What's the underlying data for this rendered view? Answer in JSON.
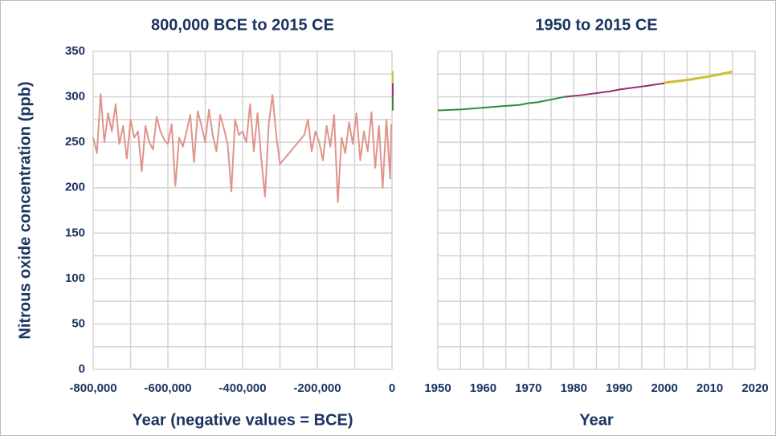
{
  "chart_data": [
    {
      "type": "line",
      "title": "800,000 BCE to 2015 CE",
      "xlabel": "Year (negative values = BCE)",
      "ylabel": "Nitrous oxide concentration (ppb)",
      "xlim": [
        -800000,
        0
      ],
      "xticks": [
        {
          "value": -800000,
          "label": "-800,000"
        },
        {
          "value": -600000,
          "label": "-600,000"
        },
        {
          "value": -400000,
          "label": "-400,000"
        },
        {
          "value": -200000,
          "label": "-200,000"
        },
        0
      ],
      "xminorticks": [
        -700000,
        -500000,
        -300000,
        -100000
      ],
      "ylim": [
        0,
        350
      ],
      "yticks": [
        0,
        50,
        100,
        150,
        200,
        250,
        300,
        350
      ],
      "yminorticks": [
        25,
        75,
        125,
        175,
        225,
        275,
        325
      ],
      "show_ytick_labels": true,
      "grid": true,
      "series": [
        {
          "color": "#e0948c",
          "x": [
            -800000,
            -790000,
            -780000,
            -770000,
            -760000,
            -750000,
            -740000,
            -730000,
            -720000,
            -710000,
            -700000,
            -690000,
            -680000,
            -670000,
            -660000,
            -650000,
            -640000,
            -630000,
            -620000,
            -610000,
            -600000,
            -590000,
            -580000,
            -570000,
            -560000,
            -550000,
            -540000,
            -530000,
            -520000,
            -510000,
            -500000,
            -490000,
            -480000,
            -470000,
            -460000,
            -450000,
            -440000,
            -430000,
            -420000,
            -410000,
            -400000,
            -390000,
            -380000,
            -370000,
            -360000,
            -350000,
            -340000,
            -330000,
            -320000,
            -310000,
            -300000,
            -235000,
            -225000,
            -215000,
            -205000,
            -195000,
            -185000,
            -175000,
            -165000,
            -155000,
            -145000,
            -135000,
            -125000,
            -115000,
            -105000,
            -95000,
            -85000,
            -75000,
            -65000,
            -55000,
            -45000,
            -35000,
            -25000,
            -15000,
            -5000,
            -2000
          ],
          "values": [
            255,
            238,
            303,
            250,
            282,
            262,
            292,
            248,
            268,
            232,
            275,
            255,
            262,
            218,
            268,
            250,
            242,
            278,
            262,
            253,
            248,
            270,
            202,
            255,
            245,
            262,
            280,
            228,
            284,
            268,
            250,
            286,
            258,
            240,
            280,
            265,
            248,
            196,
            275,
            258,
            262,
            250,
            292,
            240,
            282,
            232,
            190,
            270,
            302,
            258,
            226,
            258,
            275,
            240,
            262,
            250,
            230,
            268,
            245,
            280,
            184,
            255,
            238,
            272,
            248,
            282,
            230,
            262,
            240,
            283,
            222,
            268,
            200,
            275,
            210,
            270
          ]
        },
        {
          "color": "#2e8b3a",
          "x": [
            1950,
            1955,
            1960,
            1965,
            1968,
            1970,
            1972,
            1974,
            1976,
            1978,
            1980
          ],
          "values": [
            285,
            286,
            288,
            290,
            291,
            293,
            294,
            296,
            298,
            300,
            301
          ]
        },
        {
          "color": "#9b2f6e",
          "x": [
            1978,
            1980,
            1982,
            1985,
            1988,
            1990,
            1993,
            1996,
            2000
          ],
          "values": [
            300,
            301,
            302,
            304,
            306,
            308,
            310,
            312,
            315
          ]
        },
        {
          "color": "#f0a030",
          "x": [
            2000,
            2005,
            2010,
            2015
          ],
          "values": [
            316,
            319,
            323,
            328
          ]
        },
        {
          "color": "#b8d432",
          "x": [
            2000,
            2005,
            2010,
            2015
          ],
          "values": [
            315,
            318,
            322,
            327
          ]
        }
      ]
    },
    {
      "type": "line",
      "title": "1950 to 2015 CE",
      "xlabel": "Year",
      "xlim": [
        1950,
        2020
      ],
      "xticks": [
        1950,
        1960,
        1970,
        1980,
        1990,
        2000,
        2010,
        2020
      ],
      "xminorticks": [
        1955,
        1965,
        1975,
        1985,
        1995,
        2005,
        2015
      ],
      "ylim": [
        0,
        350
      ],
      "yticks": [
        0,
        50,
        100,
        150,
        200,
        250,
        300,
        350
      ],
      "yminorticks": [
        25,
        75,
        125,
        175,
        225,
        275,
        325
      ],
      "show_ytick_labels": false,
      "grid": true,
      "series": [
        {
          "color": "#2e8b3a",
          "x": [
            1950,
            1955,
            1960,
            1965,
            1968,
            1970,
            1972,
            1974,
            1976,
            1978,
            1980
          ],
          "values": [
            285,
            286,
            288,
            290,
            291,
            293,
            294,
            296,
            298,
            300,
            301
          ]
        },
        {
          "color": "#9b2f6e",
          "x": [
            1978,
            1980,
            1982,
            1985,
            1988,
            1990,
            1993,
            1996,
            2000
          ],
          "values": [
            300,
            301,
            302,
            304,
            306,
            308,
            310,
            312,
            315
          ]
        },
        {
          "color": "#f0a030",
          "x": [
            2000,
            2005,
            2010,
            2015
          ],
          "values": [
            316,
            319,
            323,
            328
          ]
        },
        {
          "color": "#b8d432",
          "x": [
            2000,
            2005,
            2010,
            2015
          ],
          "values": [
            315,
            318,
            322,
            327
          ]
        }
      ]
    }
  ]
}
